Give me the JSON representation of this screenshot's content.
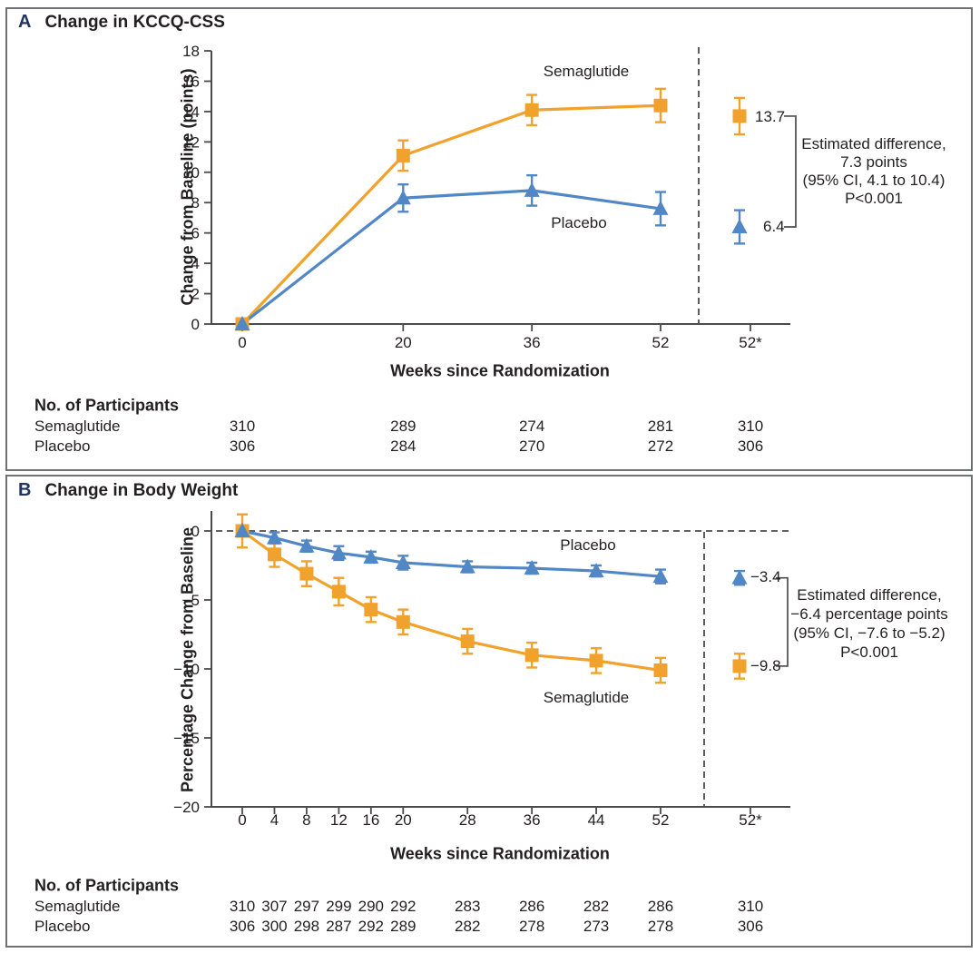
{
  "colors": {
    "semaglutide": "#F0A22C",
    "placebo": "#5287C6",
    "text": "#231F20",
    "axis": "#4B4B4D",
    "panel_letter": "#223560",
    "panel_border": "#6F7073"
  },
  "chart_data": [
    {
      "type": "line",
      "panel_label": "A",
      "title": "Change in KCCQ-CSS",
      "xlabel": "Weeks since Randomization",
      "ylabel": "Change from Baseline (points)",
      "ylim": [
        0,
        18
      ],
      "yticks": [
        0,
        2,
        4,
        6,
        8,
        10,
        12,
        14,
        16,
        18
      ],
      "ytick_labels": [
        "0",
        "2",
        "4",
        "6",
        "8",
        "10",
        "12",
        "14",
        "16",
        "18"
      ],
      "xticks": [
        {
          "week": 0,
          "label": "0"
        },
        {
          "week": 20,
          "label": "20"
        },
        {
          "week": 36,
          "label": "36"
        },
        {
          "week": 52,
          "label": "52"
        }
      ],
      "final_xtick_label": "52*",
      "grid": false,
      "legend_position": "inline-labels",
      "series": [
        {
          "name": "Semaglutide",
          "marker": "square",
          "color": "#F0A22C",
          "x": [
            0,
            20,
            36,
            52
          ],
          "values": [
            0,
            11.1,
            14.1,
            14.4
          ],
          "errors": [
            0,
            1.0,
            1.0,
            1.1
          ],
          "final_value": 13.7,
          "final_error": 1.2,
          "final_label": "13.7"
        },
        {
          "name": "Placebo",
          "marker": "triangle",
          "color": "#5287C6",
          "x": [
            0,
            20,
            36,
            52
          ],
          "values": [
            0,
            8.3,
            8.8,
            7.6
          ],
          "errors": [
            0,
            0.9,
            1.0,
            1.1
          ],
          "final_value": 6.4,
          "final_error": 1.1,
          "final_label": "6.4"
        }
      ],
      "annotation_lines": [
        "Estimated difference,",
        "7.3 points",
        "(95% CI, 4.1 to 10.4)",
        "P<0.001"
      ],
      "participants": {
        "title": "No. of Participants",
        "rows": [
          {
            "label": "Semaglutide",
            "values": [
              "310",
              "289",
              "274",
              "281",
              "310"
            ]
          },
          {
            "label": "Placebo",
            "values": [
              "306",
              "284",
              "270",
              "272",
              "306"
            ]
          }
        ]
      }
    },
    {
      "type": "line",
      "panel_label": "B",
      "title": "Change in Body Weight",
      "xlabel": "Weeks since Randomization",
      "ylabel": "Percentage Change from Baseline",
      "ylim": [
        -20,
        0
      ],
      "yticks": [
        0,
        -5,
        -10,
        -15,
        -20
      ],
      "ytick_labels": [
        "0",
        "−5",
        "−10",
        "−15",
        "−20"
      ],
      "xticks": [
        {
          "week": 0,
          "label": "0"
        },
        {
          "week": 4,
          "label": "4"
        },
        {
          "week": 8,
          "label": "8"
        },
        {
          "week": 12,
          "label": "12"
        },
        {
          "week": 16,
          "label": "16"
        },
        {
          "week": 20,
          "label": "20"
        },
        {
          "week": 28,
          "label": "28"
        },
        {
          "week": 36,
          "label": "36"
        },
        {
          "week": 44,
          "label": "44"
        },
        {
          "week": 52,
          "label": "52"
        }
      ],
      "final_xtick_label": "52*",
      "grid": false,
      "zero_reference_dashed_line": true,
      "legend_position": "inline-labels",
      "series": [
        {
          "name": "Semaglutide",
          "marker": "square",
          "color": "#F0A22C",
          "x": [
            0,
            4,
            8,
            12,
            16,
            20,
            28,
            36,
            44,
            52
          ],
          "values": [
            0,
            -1.7,
            -3.1,
            -4.4,
            -5.7,
            -6.6,
            -8.0,
            -9.0,
            -9.4,
            -10.1
          ],
          "errors": [
            1.2,
            0.9,
            0.9,
            1.0,
            0.9,
            0.9,
            0.9,
            0.9,
            0.9,
            0.9
          ],
          "final_value": -9.8,
          "final_error": 0.9,
          "final_label": "−9.8"
        },
        {
          "name": "Placebo",
          "marker": "triangle",
          "color": "#5287C6",
          "x": [
            0,
            4,
            8,
            12,
            16,
            20,
            28,
            36,
            44,
            52
          ],
          "values": [
            0,
            -0.5,
            -1.1,
            -1.6,
            -1.9,
            -2.3,
            -2.6,
            -2.7,
            -2.9,
            -3.3
          ],
          "errors": [
            0,
            0.4,
            0.4,
            0.5,
            0.4,
            0.5,
            0.4,
            0.4,
            0.4,
            0.5
          ],
          "final_value": -3.4,
          "final_error": 0.5,
          "final_label": "−3.4"
        }
      ],
      "annotation_lines": [
        "Estimated difference,",
        "−6.4 percentage points",
        "(95% CI, −7.6 to −5.2)",
        "P<0.001"
      ],
      "participants": {
        "title": "No. of Participants",
        "rows": [
          {
            "label": "Semaglutide",
            "values": [
              "310",
              "307",
              "297",
              "299",
              "290",
              "292",
              "283",
              "286",
              "282",
              "286",
              "310"
            ]
          },
          {
            "label": "Placebo",
            "values": [
              "306",
              "300",
              "298",
              "287",
              "292",
              "289",
              "282",
              "278",
              "273",
              "278",
              "306"
            ]
          }
        ]
      }
    }
  ]
}
